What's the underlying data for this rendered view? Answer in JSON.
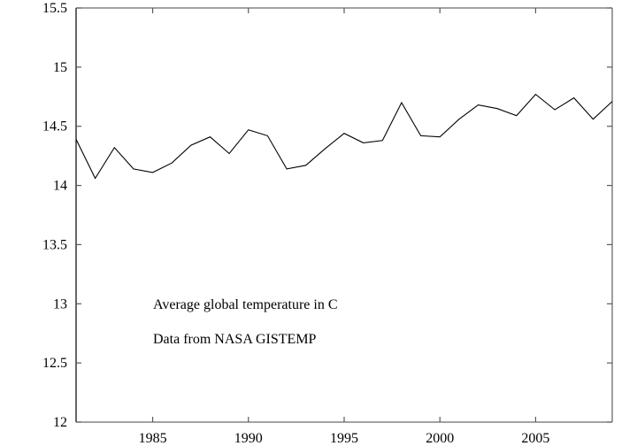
{
  "chart_data": {
    "type": "line",
    "title": "",
    "xlabel": "",
    "ylabel": "",
    "xlim": [
      1981,
      2009
    ],
    "ylim": [
      12,
      15.5
    ],
    "x_ticks": [
      1985,
      1990,
      1995,
      2000,
      2005
    ],
    "x_tick_labels": [
      "1985",
      "1990",
      "1995",
      "2000",
      "2005"
    ],
    "y_ticks": [
      12,
      12.5,
      13,
      13.5,
      14,
      14.5,
      15,
      15.5
    ],
    "y_tick_labels": [
      "12",
      "12.5",
      "13",
      "13.5",
      "14",
      "14.5",
      "15",
      "15.5"
    ],
    "grid": false,
    "legend": "none",
    "annotations": [
      "Average global temperature in C",
      "Data from NASA GISTEMP"
    ],
    "series": [
      {
        "name": "Average global temperature",
        "x": [
          1981,
          1982,
          1983,
          1984,
          1985,
          1986,
          1987,
          1988,
          1989,
          1990,
          1991,
          1992,
          1993,
          1994,
          1995,
          1996,
          1997,
          1998,
          1999,
          2000,
          2001,
          2002,
          2003,
          2004,
          2005,
          2006,
          2007,
          2008,
          2009
        ],
        "y": [
          14.39,
          14.06,
          14.32,
          14.14,
          14.11,
          14.19,
          14.34,
          14.41,
          14.27,
          14.47,
          14.42,
          14.14,
          14.17,
          14.31,
          14.44,
          14.36,
          14.38,
          14.7,
          14.42,
          14.41,
          14.56,
          14.68,
          14.65,
          14.59,
          14.77,
          14.64,
          14.74,
          14.56,
          14.71
        ],
        "color": "#000000"
      }
    ]
  }
}
